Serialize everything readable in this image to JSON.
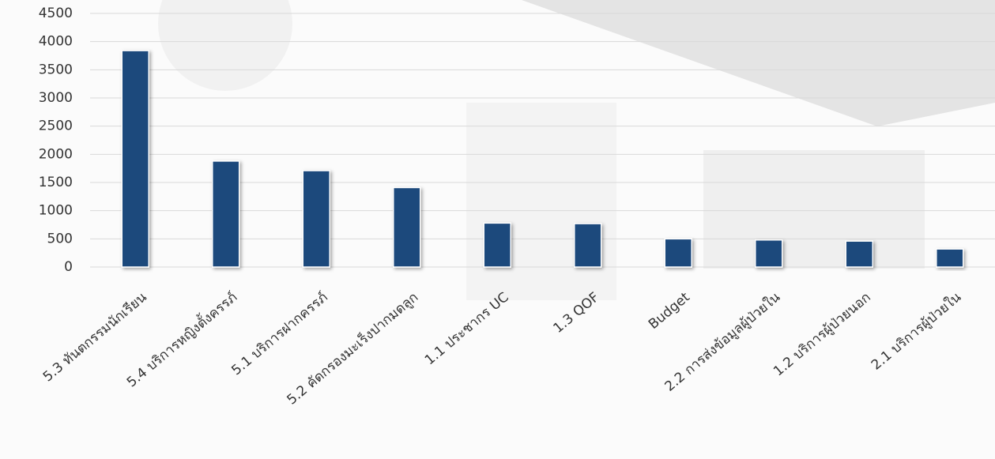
{
  "chart_data": {
    "type": "bar",
    "categories": [
      "5.3 ทันตกรรมนักเรียน",
      "5.4 บริการหญิงตั้งครรภ์",
      "5.1 บริการฝากครรภ์",
      "5.2 คัดกรองมะเร็งปากมดลูก",
      "1.1 ประชากร UC",
      "1.3 QOF",
      "Budget",
      "2.2 การส่งข้อมูลผู้ป่วยใน",
      "1.2 บริการผู้ป่วยนอก",
      "2.1 บริการผู้ป่วยใน"
    ],
    "values": [
      3840,
      1880,
      1710,
      1410,
      780,
      770,
      500,
      480,
      460,
      320
    ],
    "color": "#1f487c",
    "ylim": [
      0,
      4500
    ],
    "yticks": [
      0,
      500,
      1000,
      1500,
      2000,
      2500,
      3000,
      3500,
      4000,
      4500
    ],
    "grid": true
  }
}
